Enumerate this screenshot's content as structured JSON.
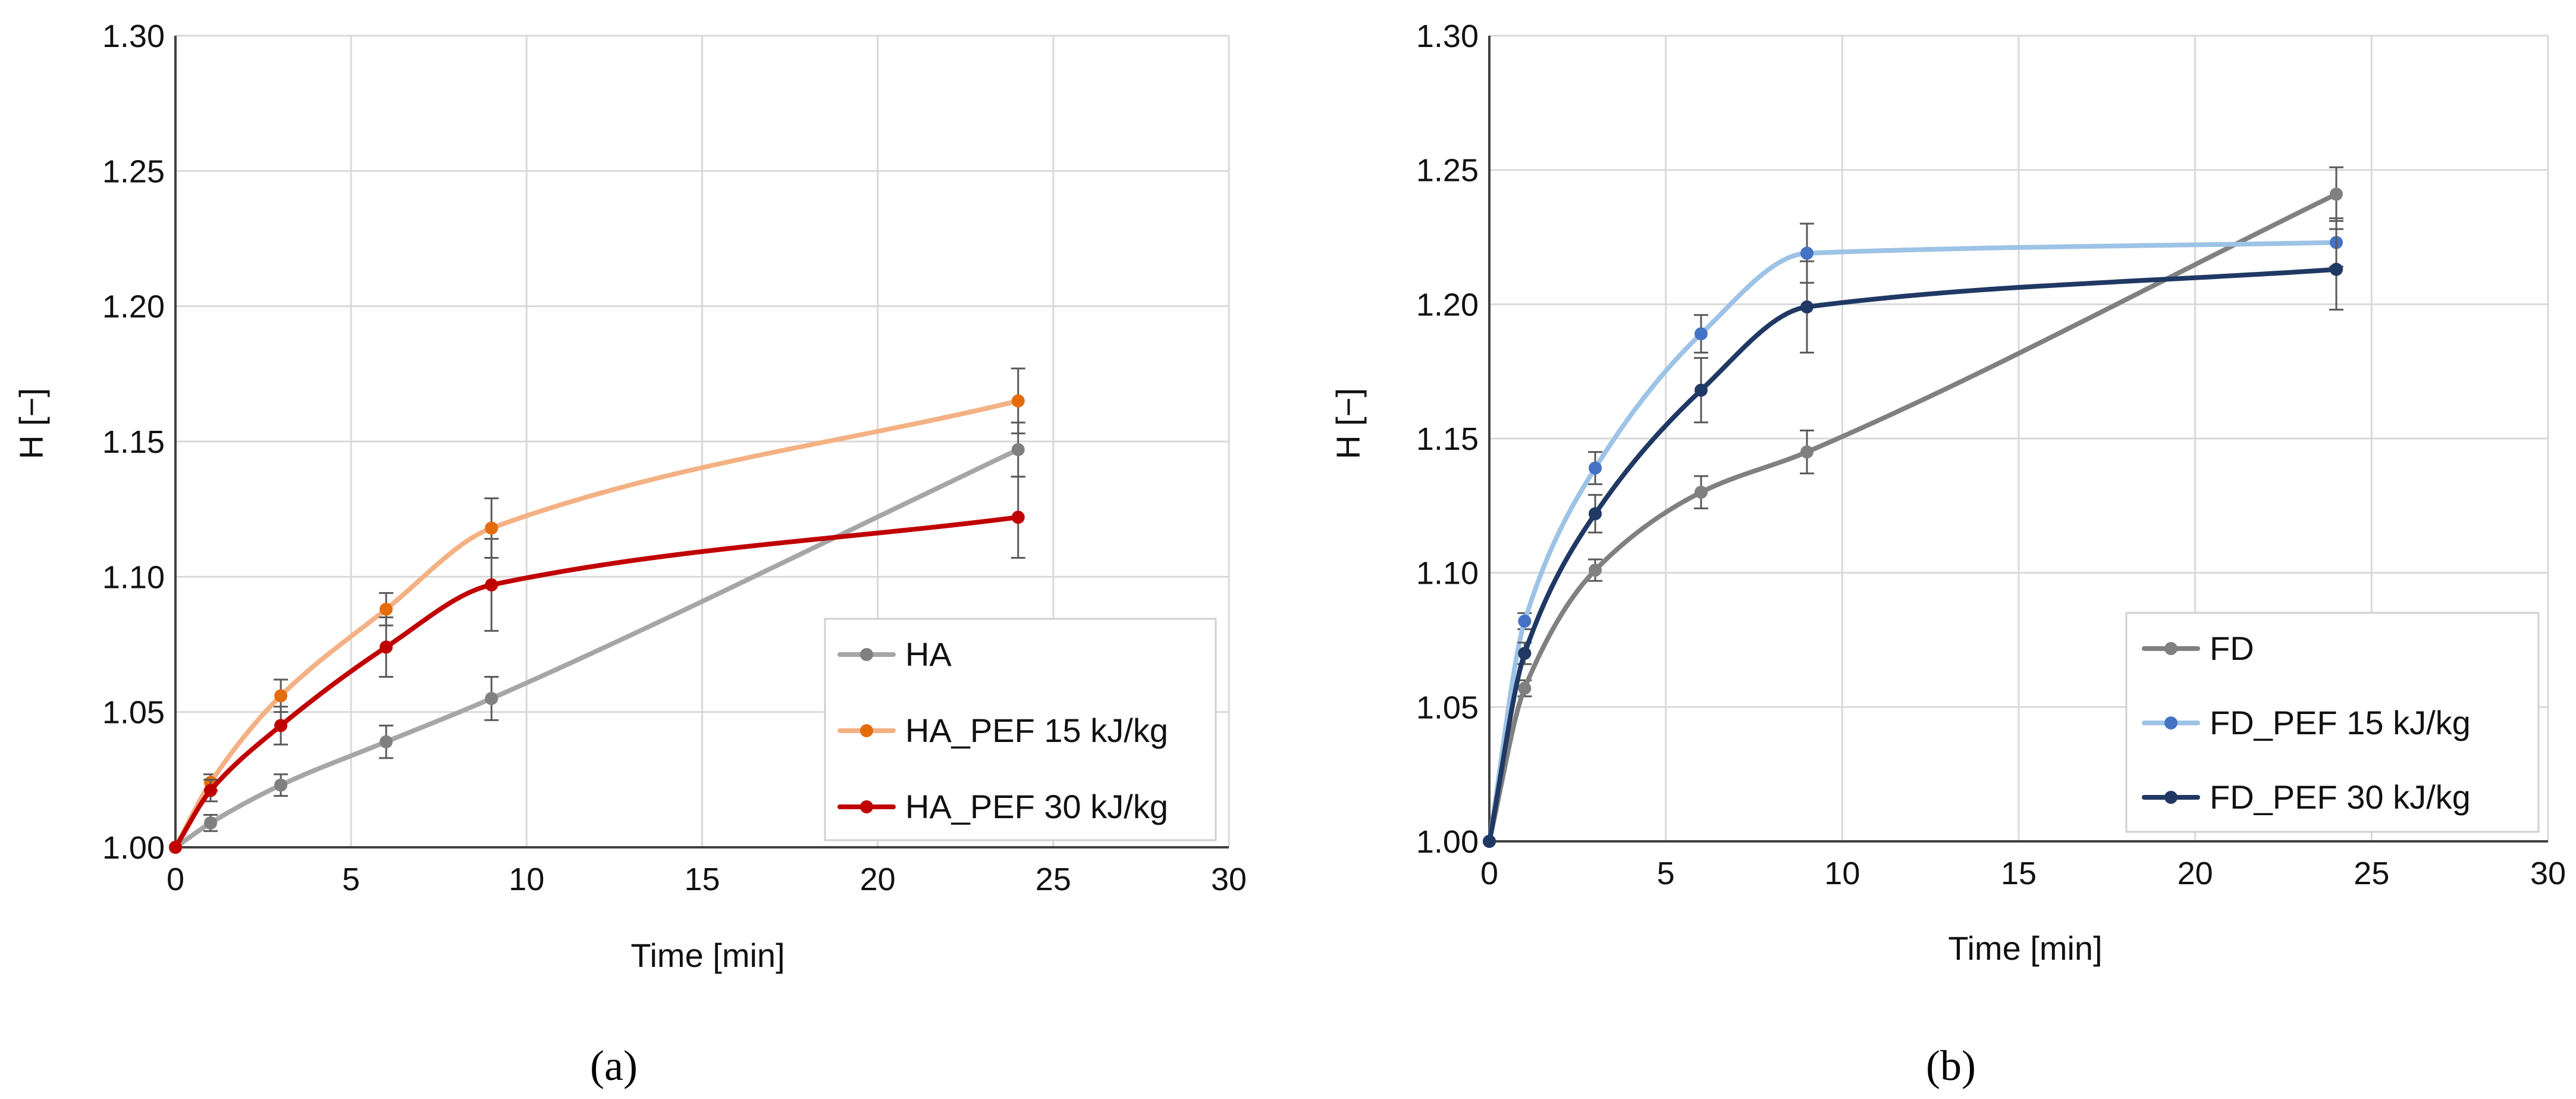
{
  "chart_data": [
    {
      "type": "line",
      "panel_label": "(a)",
      "title": "",
      "xlabel": "Time [min]",
      "ylabel": "H [−]",
      "xlim": [
        0,
        30
      ],
      "ylim": [
        1.0,
        1.3
      ],
      "xticks": [
        "0",
        "5",
        "10",
        "15",
        "20",
        "25",
        "30"
      ],
      "yticks": [
        "1.00",
        "1.05",
        "1.10",
        "1.15",
        "1.20",
        "1.25",
        "1.30"
      ],
      "grid": true,
      "legend_position": "bottom-right",
      "series": [
        {
          "name": "HA",
          "line_color": "#a6a6a6",
          "marker_color": "#808080",
          "x": [
            0,
            1,
            3,
            6,
            9,
            24
          ],
          "y": [
            1.0,
            1.009,
            1.023,
            1.039,
            1.055,
            1.147
          ],
          "err": [
            0,
            0.003,
            0.004,
            0.006,
            0.008,
            0.01
          ]
        },
        {
          "name": "HA_PEF 15 kJ/kg",
          "line_color": "#f4b183",
          "marker_color": "#e46c0a",
          "x": [
            0,
            1,
            3,
            6,
            9,
            24
          ],
          "y": [
            1.0,
            1.024,
            1.056,
            1.088,
            1.118,
            1.165
          ],
          "err": [
            0,
            0.003,
            0.006,
            0.006,
            0.011,
            0.012
          ]
        },
        {
          "name": "HA_PEF 30 kJ/kg",
          "line_color": "#c00000",
          "marker_color": "#c00000",
          "x": [
            0,
            1,
            3,
            6,
            9,
            24
          ],
          "y": [
            1.0,
            1.021,
            1.045,
            1.074,
            1.097,
            1.122
          ],
          "err": [
            0,
            0.004,
            0.007,
            0.011,
            0.017,
            0.015
          ]
        }
      ]
    },
    {
      "type": "line",
      "panel_label": "(b)",
      "title": "",
      "xlabel": "Time [min]",
      "ylabel": "H [−]",
      "xlim": [
        0,
        30
      ],
      "ylim": [
        1.0,
        1.3
      ],
      "xticks": [
        "0",
        "5",
        "10",
        "15",
        "20",
        "25",
        "30"
      ],
      "yticks": [
        "1.00",
        "1.05",
        "1.10",
        "1.15",
        "1.20",
        "1.25",
        "1.30"
      ],
      "grid": true,
      "legend_position": "bottom-right",
      "series": [
        {
          "name": "FD",
          "line_color": "#808080",
          "marker_color": "#808080",
          "x": [
            0,
            1,
            3,
            6,
            9,
            24
          ],
          "y": [
            1.0,
            1.057,
            1.101,
            1.13,
            1.145,
            1.241
          ],
          "err": [
            0,
            0.003,
            0.004,
            0.006,
            0.008,
            0.01
          ]
        },
        {
          "name": "FD_PEF 15 kJ/kg",
          "line_color": "#9dc3e6",
          "marker_color": "#4472c4",
          "x": [
            0,
            1,
            3,
            6,
            9,
            24
          ],
          "y": [
            1.0,
            1.082,
            1.139,
            1.189,
            1.219,
            1.223
          ],
          "err": [
            0,
            0.003,
            0.006,
            0.007,
            0.011,
            0.009
          ]
        },
        {
          "name": "FD_PEF 30 kJ/kg",
          "line_color": "#203864",
          "marker_color": "#203864",
          "x": [
            0,
            1,
            3,
            6,
            9,
            24
          ],
          "y": [
            1.0,
            1.07,
            1.122,
            1.168,
            1.199,
            1.213
          ],
          "err": [
            0,
            0.004,
            0.007,
            0.012,
            0.017,
            0.015
          ]
        }
      ]
    }
  ]
}
